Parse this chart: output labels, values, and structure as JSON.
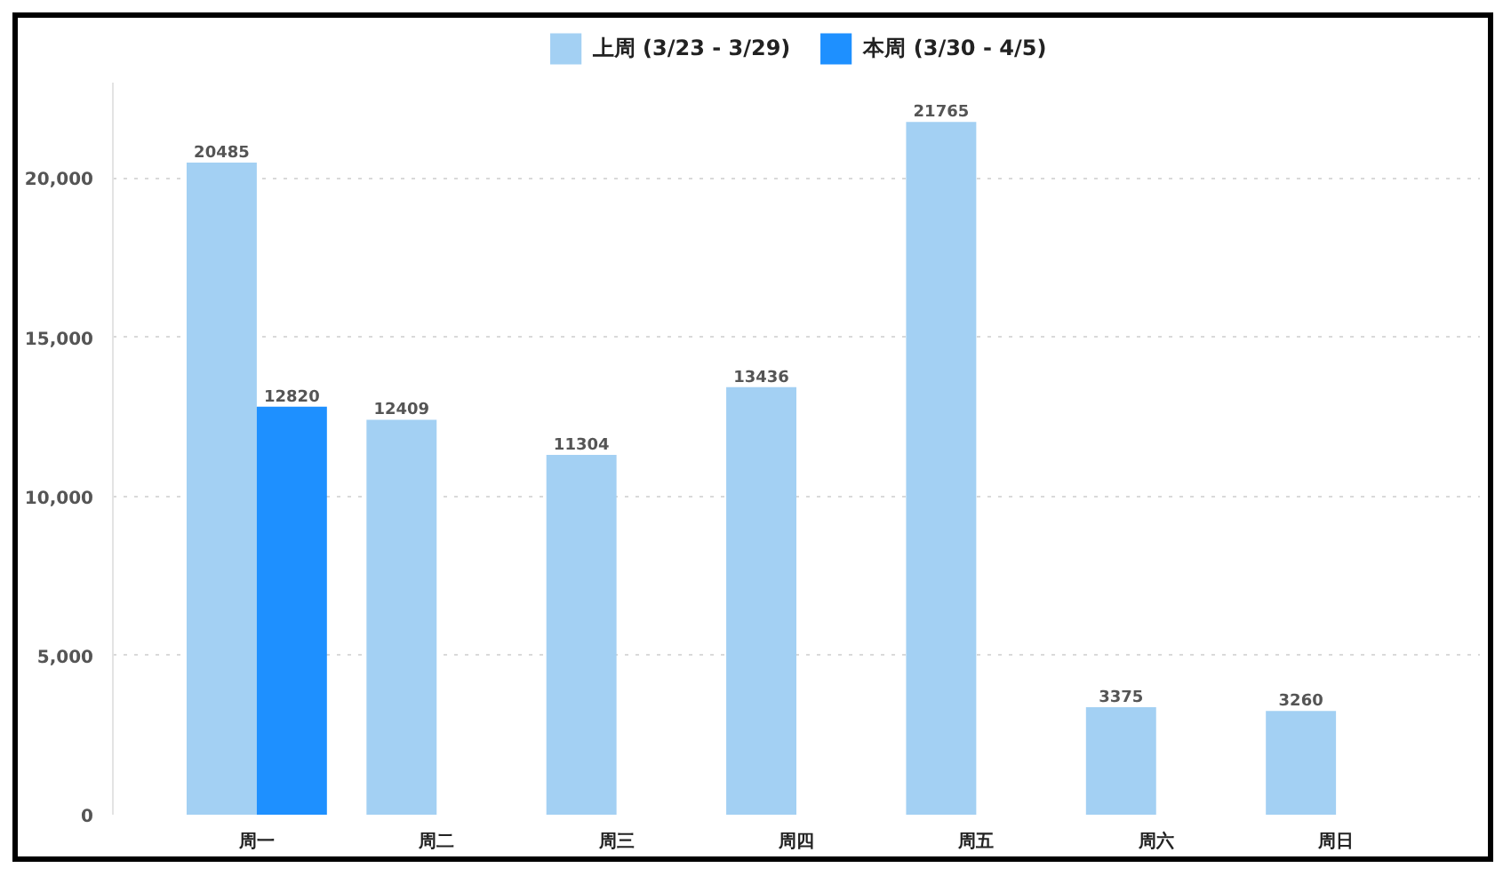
{
  "chart_data": {
    "type": "bar",
    "categories": [
      "周一",
      "周二",
      "周三",
      "周四",
      "周五",
      "周六",
      "周日"
    ],
    "series": [
      {
        "name": "上周 (3/23 - 3/29)",
        "color": "#a3d0f3",
        "values": [
          20485,
          12409,
          11304,
          13436,
          21765,
          3375,
          3260
        ]
      },
      {
        "name": "本周 (3/30 - 4/5)",
        "color": "#1e90ff",
        "values": [
          12820,
          null,
          null,
          null,
          null,
          null,
          null
        ]
      }
    ],
    "ylim": [
      0,
      23000
    ],
    "yticks": [
      0,
      {
        "value": 5000,
        "label": "5,000"
      },
      {
        "value": 10000,
        "label": "10,000"
      },
      {
        "value": 15000,
        "label": "15,000"
      },
      {
        "value": 20000,
        "label": "20,000"
      }
    ],
    "grid": "y",
    "legend": "top",
    "data_labels": true
  }
}
